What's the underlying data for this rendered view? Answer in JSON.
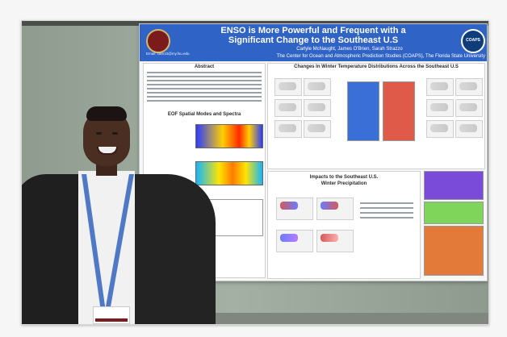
{
  "poster": {
    "title_line1": "ENSO is More Powerful and Frequent with a",
    "title_line2": "Significant Change to the Southeast U.S",
    "authors": "Carlyle McNaught, James O'Brien, Sarah Strazzo",
    "affiliation": "The Center for Ocean and Atmospheric Prediction Studies (COAPS), The Florida State University",
    "email": "Email: cam10@my.fsu.edu",
    "logo_right_text": "COAPS",
    "sections": {
      "abstract_title": "Abstract",
      "eof_title": "EOF Spatial Modes and Spectra",
      "winter_temp_title": "Changes In Winter Temperature Distributions Across the Southeast U.S",
      "precip_title_line1": "Impacts to the Southeast U.S.",
      "precip_title_line2": "Winter Precipitation"
    }
  },
  "colors": {
    "poster_header_blue": "#2f63c6",
    "fsu_garnet": "#7b1b1b",
    "coaps_navy": "#0f3d7a",
    "wall_green_gray": "#9aa89a",
    "highlight_blue": "#3b6fd8",
    "highlight_red": "#e05a4a",
    "highlight_purple": "#7a4ad8",
    "highlight_green": "#7fd45a",
    "highlight_orange": "#e47a3a"
  },
  "scene": {
    "person_present": true,
    "lanyard_present": true,
    "badge_present": true
  }
}
